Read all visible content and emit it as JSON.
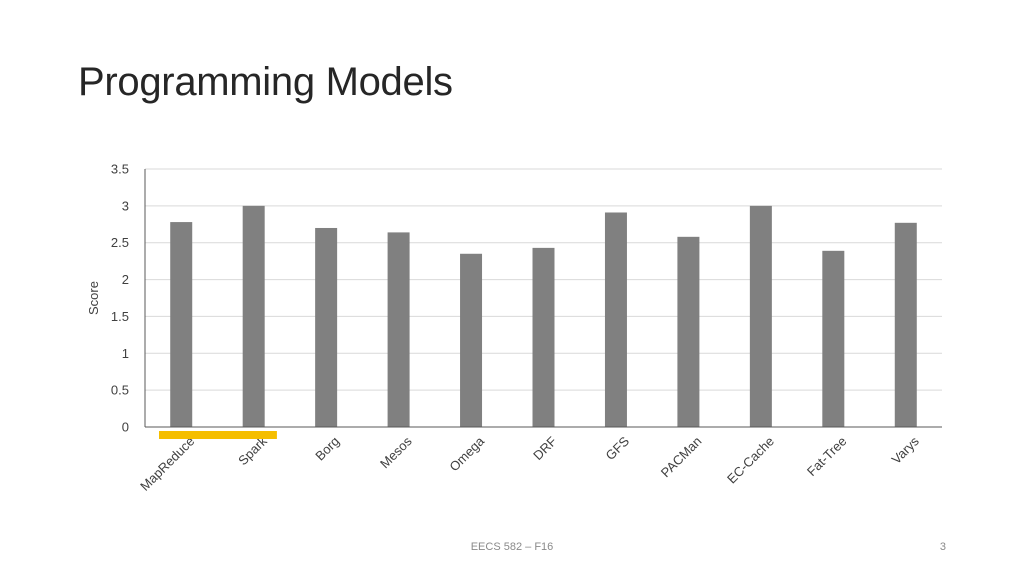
{
  "slide": {
    "title": "Programming Models",
    "footer": "EECS 582 – F16",
    "page_number": "3"
  },
  "chart_data": {
    "type": "bar",
    "categories": [
      "MapReduce",
      "Spark",
      "Borg",
      "Mesos",
      "Omega",
      "DRF",
      "GFS",
      "PACMan",
      "EC-Cache",
      "Fat-Tree",
      "Varys"
    ],
    "values": [
      2.78,
      3.0,
      2.7,
      2.64,
      2.35,
      2.43,
      2.91,
      2.58,
      3.0,
      2.39,
      2.77
    ],
    "ylabel": "Score",
    "xlabel": "",
    "ylim": [
      0,
      3.5
    ],
    "yticks": [
      "0",
      "0.5",
      "1",
      "1.5",
      "2",
      "2.5",
      "3",
      "3.5"
    ],
    "grid": true,
    "bar_color": "#808080",
    "highlight": {
      "categories": [
        "MapReduce",
        "Spark"
      ],
      "color": "#F5BE00"
    }
  }
}
